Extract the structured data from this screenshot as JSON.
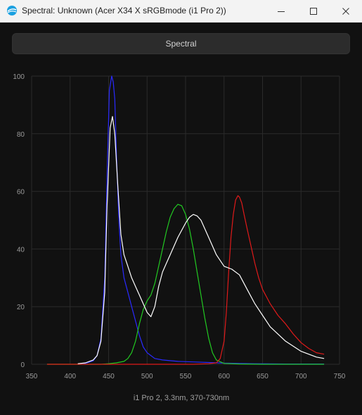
{
  "window": {
    "title": "Spectral: Unknown (Acer X34 X sRGBmode (i1 Pro 2))",
    "minimize_icon": "minimize-icon",
    "maximize_icon": "maximize-icon",
    "close_icon": "close-icon",
    "app_icon": "argyll-icon"
  },
  "toolbar": {
    "spectral_label": "Spectral"
  },
  "colors": {
    "white": "#ffffff",
    "blue": "#2a2aff",
    "green": "#22c922",
    "red": "#e01a1a",
    "grid": "#2a2a2a",
    "tick_label": "#9a9a9a"
  },
  "chart_data": {
    "type": "line",
    "xlim": [
      350,
      750
    ],
    "ylim": [
      0,
      100
    ],
    "x_ticks": [
      350,
      400,
      450,
      500,
      550,
      600,
      650,
      700,
      750
    ],
    "y_ticks": [
      0,
      20,
      40,
      60,
      80,
      100
    ],
    "caption": "i1 Pro 2, 3.3nm, 370-730nm",
    "grid": true,
    "series": [
      {
        "color": "white",
        "x": [
          410,
          420,
          430,
          435,
          440,
          445,
          448,
          452,
          455,
          458,
          462,
          466,
          470,
          475,
          480,
          485,
          490,
          495,
          500,
          505,
          510,
          515,
          520,
          525,
          530,
          540,
          550,
          555,
          560,
          565,
          570,
          575,
          580,
          590,
          600,
          610,
          620,
          630,
          640,
          650,
          660,
          680,
          700,
          720,
          730
        ],
        "y": [
          0.2,
          0.5,
          1.5,
          3,
          8,
          25,
          55,
          82,
          86,
          80,
          62,
          45,
          38,
          34,
          30,
          27,
          24,
          21,
          18,
          16.5,
          20,
          27,
          32,
          35,
          38,
          44,
          49,
          51,
          52,
          51.5,
          50,
          47,
          44,
          38,
          34,
          33,
          31,
          26,
          21,
          17,
          13,
          8,
          4.5,
          2.5,
          2
        ]
      },
      {
        "color": "blue",
        "x": [
          410,
          420,
          430,
          435,
          440,
          445,
          448,
          451,
          454,
          456,
          458,
          460,
          463,
          466,
          470,
          475,
          480,
          485,
          490,
          495,
          500,
          510,
          520,
          540,
          560,
          580,
          600,
          640,
          680,
          720,
          730
        ],
        "y": [
          0.1,
          0.3,
          1.2,
          3,
          9,
          30,
          65,
          95,
          100,
          98,
          92,
          75,
          52,
          38,
          30,
          25,
          20,
          15,
          10,
          6,
          4,
          2,
          1.5,
          1,
          0.8,
          0.6,
          0.4,
          0.2,
          0.1,
          0.1,
          0.1
        ]
      },
      {
        "color": "green",
        "x": [
          370,
          440,
          450,
          460,
          470,
          475,
          480,
          485,
          490,
          495,
          500,
          505,
          510,
          515,
          520,
          525,
          530,
          535,
          540,
          545,
          550,
          555,
          560,
          565,
          570,
          575,
          580,
          585,
          590,
          600,
          620,
          650,
          700,
          730
        ],
        "y": [
          0,
          0,
          0.2,
          0.5,
          1,
          2,
          4,
          8,
          14,
          19,
          22,
          24,
          28,
          34,
          40,
          46,
          51,
          54,
          55.5,
          55,
          52,
          47,
          40,
          32,
          24,
          16,
          9,
          4,
          1.5,
          0.3,
          0.1,
          0,
          0,
          0
        ]
      },
      {
        "color": "red",
        "x": [
          370,
          560,
          580,
          590,
          595,
          600,
          603,
          606,
          609,
          612,
          615,
          618,
          620,
          623,
          626,
          630,
          635,
          640,
          645,
          650,
          660,
          670,
          680,
          690,
          700,
          710,
          720,
          730
        ],
        "y": [
          0,
          0,
          0.2,
          0.5,
          2,
          8,
          18,
          32,
          44,
          52,
          57,
          58.5,
          58,
          56,
          52,
          47,
          41,
          35,
          30,
          26,
          21,
          17,
          14,
          10.5,
          7.5,
          5.5,
          4,
          3.5
        ]
      }
    ]
  }
}
